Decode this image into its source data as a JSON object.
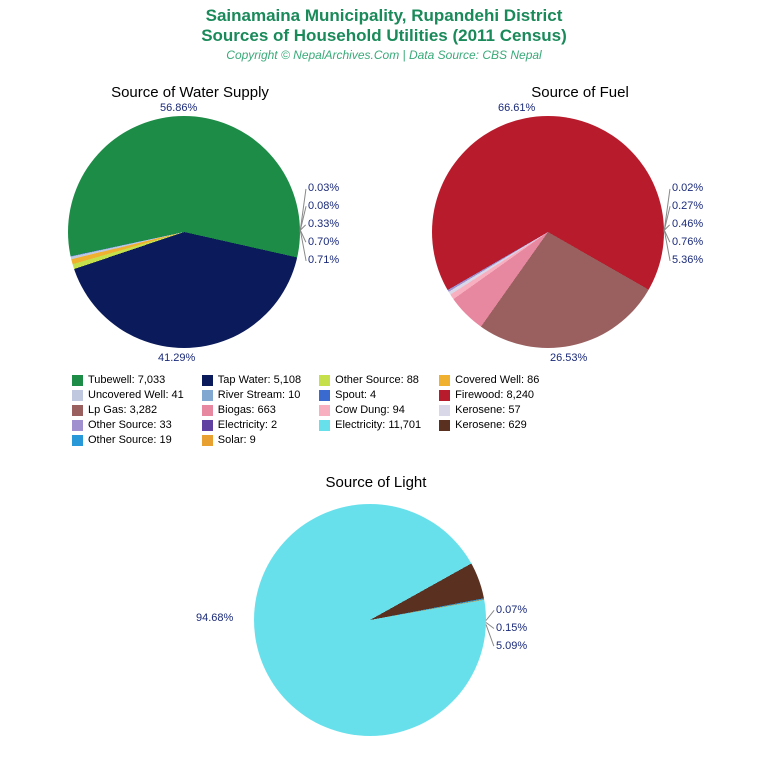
{
  "title_line1": "Sainamaina Municipality, Rupandehi District",
  "title_line2": "Sources of Household Utilities (2011 Census)",
  "subtitle": "Copyright © NepalArchives.Com | Data Source: CBS Nepal",
  "title_color": "#1a8a5a",
  "title_fontsize": 17,
  "subtitle_color": "#3aaa7a",
  "subtitle_fontsize": 12,
  "label_color": "#1a2a7a",
  "label_fontsize": 11,
  "chart_title_fontsize": 15,
  "chart_title_color": "#000000",
  "water_chart": {
    "title": "Source of Water Supply",
    "diameter": 232,
    "slices": [
      {
        "label": "Tubewell",
        "value": 7033,
        "pct": 56.86,
        "color": "#1d8c47"
      },
      {
        "label": "Tap Water",
        "value": 5108,
        "pct": 41.29,
        "color": "#0a1a5a"
      },
      {
        "label": "Other Source",
        "value": 88,
        "pct": 0.71,
        "color": "#c5e04a"
      },
      {
        "label": "Covered Well",
        "value": 86,
        "pct": 0.7,
        "color": "#f0b030"
      },
      {
        "label": "Uncovered Well",
        "value": 41,
        "pct": 0.33,
        "color": "#c0c8e0"
      },
      {
        "label": "River Stream",
        "value": 10,
        "pct": 0.08,
        "color": "#80a8d0"
      },
      {
        "label": "Spout",
        "value": 4,
        "pct": 0.03,
        "color": "#3a6ad0"
      }
    ],
    "pct_labels": [
      "56.86%",
      "0.03%",
      "0.08%",
      "0.33%",
      "0.70%",
      "0.71%",
      "41.29%"
    ]
  },
  "fuel_chart": {
    "title": "Source of Fuel",
    "diameter": 232,
    "slices": [
      {
        "label": "Firewood",
        "value": 8240,
        "pct": 66.61,
        "color": "#b81c2c"
      },
      {
        "label": "Lp Gas",
        "value": 3282,
        "pct": 26.53,
        "color": "#9a6060"
      },
      {
        "label": "Biogas",
        "value": 663,
        "pct": 5.36,
        "color": "#e888a0"
      },
      {
        "label": "Cow Dung",
        "value": 94,
        "pct": 0.76,
        "color": "#f8b0c0"
      },
      {
        "label": "Kerosene",
        "value": 57,
        "pct": 0.46,
        "color": "#d8d8e8"
      },
      {
        "label": "Other Source",
        "value": 33,
        "pct": 0.27,
        "color": "#a090d0"
      },
      {
        "label": "Electricity",
        "value": 2,
        "pct": 0.02,
        "color": "#6040a0"
      }
    ],
    "pct_labels": [
      "66.61%",
      "0.02%",
      "0.27%",
      "0.46%",
      "0.76%",
      "5.36%",
      "26.53%"
    ]
  },
  "light_chart": {
    "title": "Source of Light",
    "diameter": 232,
    "slices": [
      {
        "label": "Electricity",
        "value": 11701,
        "pct": 94.68,
        "color": "#68e0ec"
      },
      {
        "label": "Kerosene",
        "value": 629,
        "pct": 5.09,
        "color": "#5a3020"
      },
      {
        "label": "Other Source",
        "value": 19,
        "pct": 0.15,
        "color": "#2898d8"
      },
      {
        "label": "Solar",
        "value": 9,
        "pct": 0.07,
        "color": "#e8a030"
      }
    ],
    "pct_labels": [
      "94.68%",
      "0.07%",
      "0.15%",
      "5.09%"
    ]
  },
  "legend_items": [
    {
      "color": "#1d8c47",
      "text": "Tubewell: 7,033"
    },
    {
      "color": "#0a1a5a",
      "text": "Tap Water: 5,108"
    },
    {
      "color": "#c5e04a",
      "text": "Other Source: 88"
    },
    {
      "color": "#f0b030",
      "text": "Covered Well: 86"
    },
    {
      "color": "#c0c8e0",
      "text": "Uncovered Well: 41"
    },
    {
      "color": "#80a8d0",
      "text": "River Stream: 10"
    },
    {
      "color": "#3a6ad0",
      "text": "Spout: 4"
    },
    {
      "color": "#b81c2c",
      "text": "Firewood: 8,240"
    },
    {
      "color": "#9a6060",
      "text": "Lp Gas: 3,282"
    },
    {
      "color": "#e888a0",
      "text": "Biogas: 663"
    },
    {
      "color": "#f8b0c0",
      "text": "Cow Dung: 94"
    },
    {
      "color": "#d8d8e8",
      "text": "Kerosene: 57"
    },
    {
      "color": "#a090d0",
      "text": "Other Source: 33"
    },
    {
      "color": "#6040a0",
      "text": "Electricity: 2"
    },
    {
      "color": "#68e0ec",
      "text": "Electricity: 11,701"
    },
    {
      "color": "#5a3020",
      "text": "Kerosene: 629"
    },
    {
      "color": "#2898d8",
      "text": "Other Source: 19"
    },
    {
      "color": "#e8a030",
      "text": "Solar: 9"
    }
  ]
}
